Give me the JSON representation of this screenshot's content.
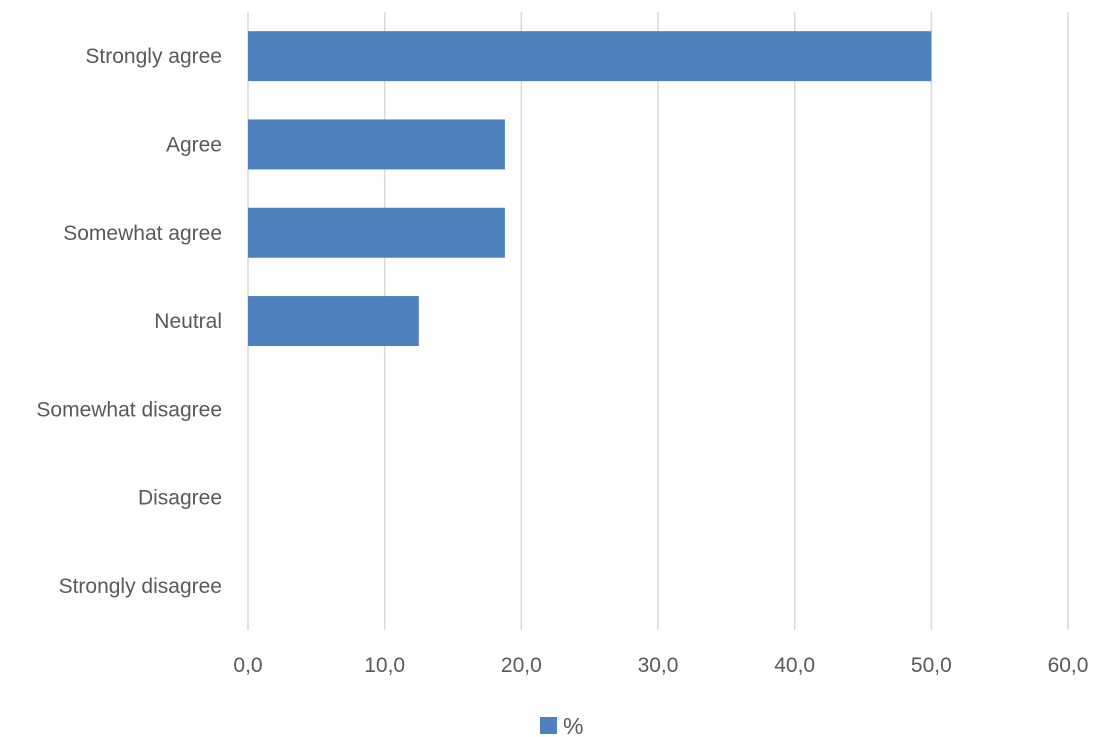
{
  "chart_data": {
    "type": "bar",
    "orientation": "horizontal",
    "categories": [
      "Strongly agree",
      "Agree",
      "Somewhat agree",
      "Neutral",
      "Somewhat disagree",
      "Disagree",
      "Strongly disagree"
    ],
    "series": [
      {
        "name": "%",
        "values": [
          50.0,
          18.8,
          18.8,
          12.5,
          0,
          0,
          0
        ]
      }
    ],
    "xlim": [
      0,
      60
    ],
    "x_ticks": [
      0,
      10,
      20,
      30,
      40,
      50,
      60
    ],
    "x_tick_labels": [
      "0,0",
      "10,0",
      "20,0",
      "30,0",
      "40,0",
      "50,0",
      "60,0"
    ],
    "grid": "vertical",
    "legend_position": "bottom",
    "colors": {
      "bar": "#4f81bd",
      "gridline": "#d9d9d9",
      "text": "#595959"
    }
  }
}
